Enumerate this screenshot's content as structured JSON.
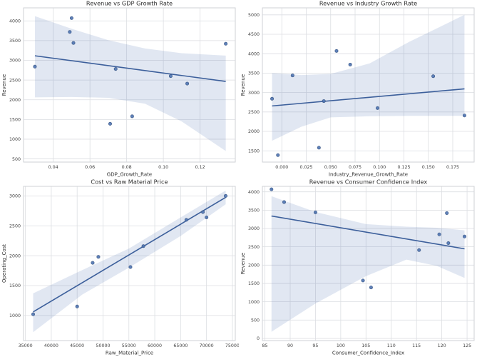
{
  "figure": {
    "background": "#ffffff",
    "accent": "#4c72b0",
    "point_fill": "#4c72b0",
    "point_edge": "#3a5683",
    "line_color": "#3c5f9b",
    "band_fill": "rgba(76,114,176,0.17)",
    "grid_color": "#dcdee2",
    "axes_edge_color": "#cfd2d6",
    "tick_color": "#3d3d3d",
    "label_color": "#333333",
    "title_color": "#2f2f2f"
  },
  "chart_data": [
    {
      "type": "scatter",
      "title": "Revenue vs GDP Growth Rate",
      "xlabel": "GDP_Growth_Rate",
      "ylabel": "Revenue",
      "xlim": [
        0.0238,
        0.1392
      ],
      "ylim": [
        420,
        4330
      ],
      "xticks": [
        0.04,
        0.06,
        0.08,
        0.1,
        0.12
      ],
      "xtick_labels": [
        "0.04",
        "0.06",
        "0.08",
        "0.10",
        "0.12"
      ],
      "yticks": [
        500,
        1000,
        1500,
        2000,
        2500,
        3000,
        3500,
        4000
      ],
      "ytick_labels": [
        "500",
        "1000",
        "1500",
        "2000",
        "2500",
        "3000",
        "3500",
        "4000"
      ],
      "points": [
        [
          0.03,
          2840
        ],
        [
          0.049,
          3720
        ],
        [
          0.05,
          4070
        ],
        [
          0.051,
          3440
        ],
        [
          0.071,
          1390
        ],
        [
          0.074,
          2780
        ],
        [
          0.083,
          1580
        ],
        [
          0.104,
          2600
        ],
        [
          0.113,
          2410
        ],
        [
          0.134,
          3420
        ]
      ],
      "regression": {
        "x": [
          0.03,
          0.134
        ],
        "y": [
          3115,
          2465
        ]
      },
      "band": {
        "x": [
          0.03,
          0.05,
          0.07,
          0.09,
          0.11,
          0.134
        ],
        "upper": [
          4120,
          3800,
          3510,
          3300,
          3180,
          3120
        ],
        "lower": [
          2060,
          2070,
          2050,
          1900,
          1450,
          700
        ]
      }
    },
    {
      "type": "scatter",
      "title": "Revenue vs Industry Growth Rate",
      "xlabel": "Industry_Revenue_Growth_Rate",
      "ylabel": "Revenue",
      "xlim": [
        -0.0199,
        0.1969
      ],
      "ylim": [
        1210,
        5180
      ],
      "xticks": [
        0.0,
        0.025,
        0.05,
        0.075,
        0.1,
        0.125,
        0.15,
        0.175
      ],
      "xtick_labels": [
        "0.000",
        "0.025",
        "0.050",
        "0.075",
        "0.100",
        "0.125",
        "0.150",
        "0.175"
      ],
      "yticks": [
        1500,
        2000,
        2500,
        3000,
        3500,
        4000,
        4500,
        5000
      ],
      "ytick_labels": [
        "1500",
        "2000",
        "2500",
        "3000",
        "3500",
        "4000",
        "4500",
        "5000"
      ],
      "points": [
        [
          -0.01,
          2840
        ],
        [
          -0.004,
          1390
        ],
        [
          0.011,
          3440
        ],
        [
          0.038,
          1580
        ],
        [
          0.043,
          2780
        ],
        [
          0.056,
          4070
        ],
        [
          0.07,
          3720
        ],
        [
          0.098,
          2600
        ],
        [
          0.155,
          3420
        ],
        [
          0.187,
          2410
        ]
      ],
      "regression": {
        "x": [
          -0.01,
          0.187
        ],
        "y": [
          2655,
          3095
        ]
      },
      "band": {
        "x": [
          -0.01,
          0.02,
          0.05,
          0.09,
          0.13,
          0.187
        ],
        "upper": [
          3500,
          3450,
          3480,
          3750,
          4300,
          5000
        ],
        "lower": [
          1760,
          2120,
          2360,
          2390,
          2400,
          2400
        ]
      }
    },
    {
      "type": "scatter",
      "title": "Cost vs Raw Material Price",
      "xlabel": "Raw_Material_Price",
      "ylabel": "Operating_Cost",
      "xlim": [
        34640,
        75560
      ],
      "ylim": [
        580,
        3160
      ],
      "xticks": [
        35000,
        40000,
        45000,
        50000,
        55000,
        60000,
        65000,
        70000,
        75000
      ],
      "xtick_labels": [
        "35000",
        "40000",
        "45000",
        "50000",
        "55000",
        "60000",
        "65000",
        "70000",
        "75000"
      ],
      "yticks": [
        1000,
        1500,
        2000,
        2500,
        3000
      ],
      "ytick_labels": [
        "1000",
        "1500",
        "2000",
        "2500",
        "3000"
      ],
      "points": [
        [
          36500,
          1020
        ],
        [
          45000,
          1150
        ],
        [
          48000,
          1880
        ],
        [
          49100,
          1980
        ],
        [
          55300,
          1810
        ],
        [
          57800,
          2160
        ],
        [
          66100,
          2600
        ],
        [
          69300,
          2730
        ],
        [
          70000,
          2640
        ],
        [
          73700,
          3000
        ]
      ],
      "regression": {
        "x": [
          36500,
          73700
        ],
        "y": [
          1060,
          2975
        ]
      },
      "band": {
        "x": [
          36500,
          46000,
          55000,
          65000,
          73700
        ],
        "upper": [
          1370,
          1760,
          2120,
          2640,
          3090
        ],
        "lower": [
          720,
          1350,
          1800,
          2330,
          2860
        ]
      }
    },
    {
      "type": "scatter",
      "title": "Revenue vs Consumer Confidence Index",
      "xlabel": "Consumer_Confidence_Index",
      "ylabel": "Revenue",
      "xlim": [
        84.5,
        126.4
      ],
      "ylim": [
        -60,
        4150
      ],
      "xticks": [
        85,
        90,
        95,
        100,
        105,
        110,
        115,
        120,
        125
      ],
      "xtick_labels": [
        "85",
        "90",
        "95",
        "100",
        "105",
        "110",
        "115",
        "120",
        "125"
      ],
      "yticks": [
        0,
        500,
        1000,
        1500,
        2000,
        2500,
        3000,
        3500,
        4000
      ],
      "ytick_labels": [
        "0",
        "500",
        "1000",
        "1500",
        "2000",
        "2500",
        "3000",
        "3500",
        "4000"
      ],
      "points": [
        [
          86.3,
          4070
        ],
        [
          88.8,
          3720
        ],
        [
          95.0,
          3440
        ],
        [
          104.4,
          1580
        ],
        [
          106.0,
          1390
        ],
        [
          115.5,
          2410
        ],
        [
          119.5,
          2840
        ],
        [
          121.0,
          3420
        ],
        [
          121.3,
          2600
        ],
        [
          124.5,
          2780
        ]
      ],
      "regression": {
        "x": [
          86.3,
          124.5
        ],
        "y": [
          3340,
          2445
        ]
      },
      "band": {
        "x": [
          86.3,
          95,
          105,
          113,
          119,
          124.5
        ],
        "upper": [
          3880,
          3450,
          3120,
          3050,
          3020,
          2950
        ],
        "lower": [
          180,
          950,
          1700,
          2150,
          1980,
          1650
        ]
      }
    }
  ]
}
